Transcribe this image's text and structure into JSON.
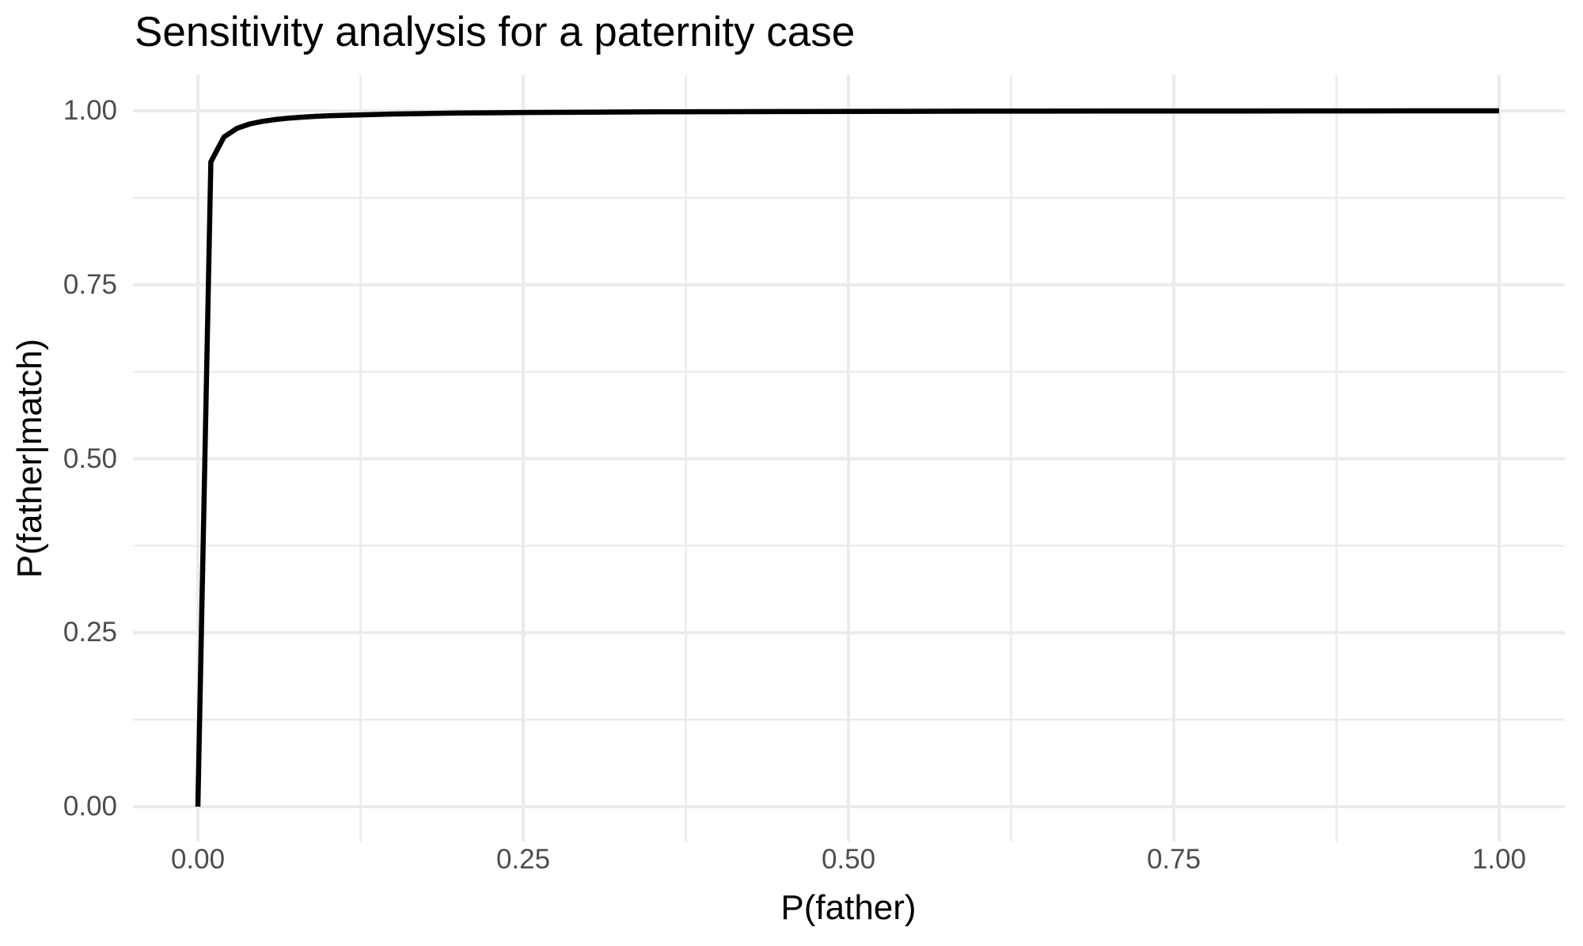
{
  "chart_data": {
    "type": "line",
    "title": "Sensitivity analysis for a paternity case",
    "xlabel": "P(father)",
    "ylabel": "P(father|match)",
    "xlim": [
      0,
      1
    ],
    "ylim": [
      0,
      1
    ],
    "grid": "major+minor",
    "legend": "none",
    "x_ticks": {
      "values": [
        0,
        0.25,
        0.5,
        0.75,
        1
      ],
      "labels": [
        "0.00",
        "0.25",
        "0.50",
        "0.75",
        "1.00"
      ]
    },
    "y_ticks": {
      "values": [
        0,
        0.25,
        0.5,
        0.75,
        1
      ],
      "labels": [
        "0.00",
        "0.25",
        "0.50",
        "0.75",
        "1.00"
      ]
    },
    "x_minor_ticks": [
      0.125,
      0.375,
      0.625,
      0.875
    ],
    "y_minor_ticks": [
      0.125,
      0.375,
      0.625,
      0.875
    ],
    "colors": {
      "line": "#000000",
      "grid_major": "#EBEBEB",
      "grid_minor": "#EBEBEB",
      "tick_text": "#4D4D4D",
      "title_text": "#000000",
      "background": "#FFFFFF"
    },
    "series": [
      {
        "name": "posterior-probability-curve",
        "x": [
          0,
          0.01,
          0.02,
          0.03,
          0.04,
          0.05,
          0.06,
          0.07,
          0.08,
          0.09,
          0.1,
          0.15,
          0.2,
          0.25,
          0.3,
          0.35,
          0.4,
          0.45,
          0.5,
          0.55,
          0.6,
          0.65,
          0.7,
          0.75,
          0.8,
          0.85,
          0.9,
          0.95,
          1.0
        ],
        "y": [
          0,
          0.9266,
          0.9623,
          0.9748,
          0.9812,
          0.985,
          0.9876,
          0.9895,
          0.9909,
          0.992,
          0.9929,
          0.9955,
          0.9968,
          0.9976,
          0.9981,
          0.9985,
          0.9988,
          0.999,
          0.9992,
          0.9993,
          0.9995,
          0.9996,
          0.9997,
          0.9997,
          0.9998,
          0.9999,
          0.9999,
          1.0,
          1.0
        ]
      }
    ]
  }
}
